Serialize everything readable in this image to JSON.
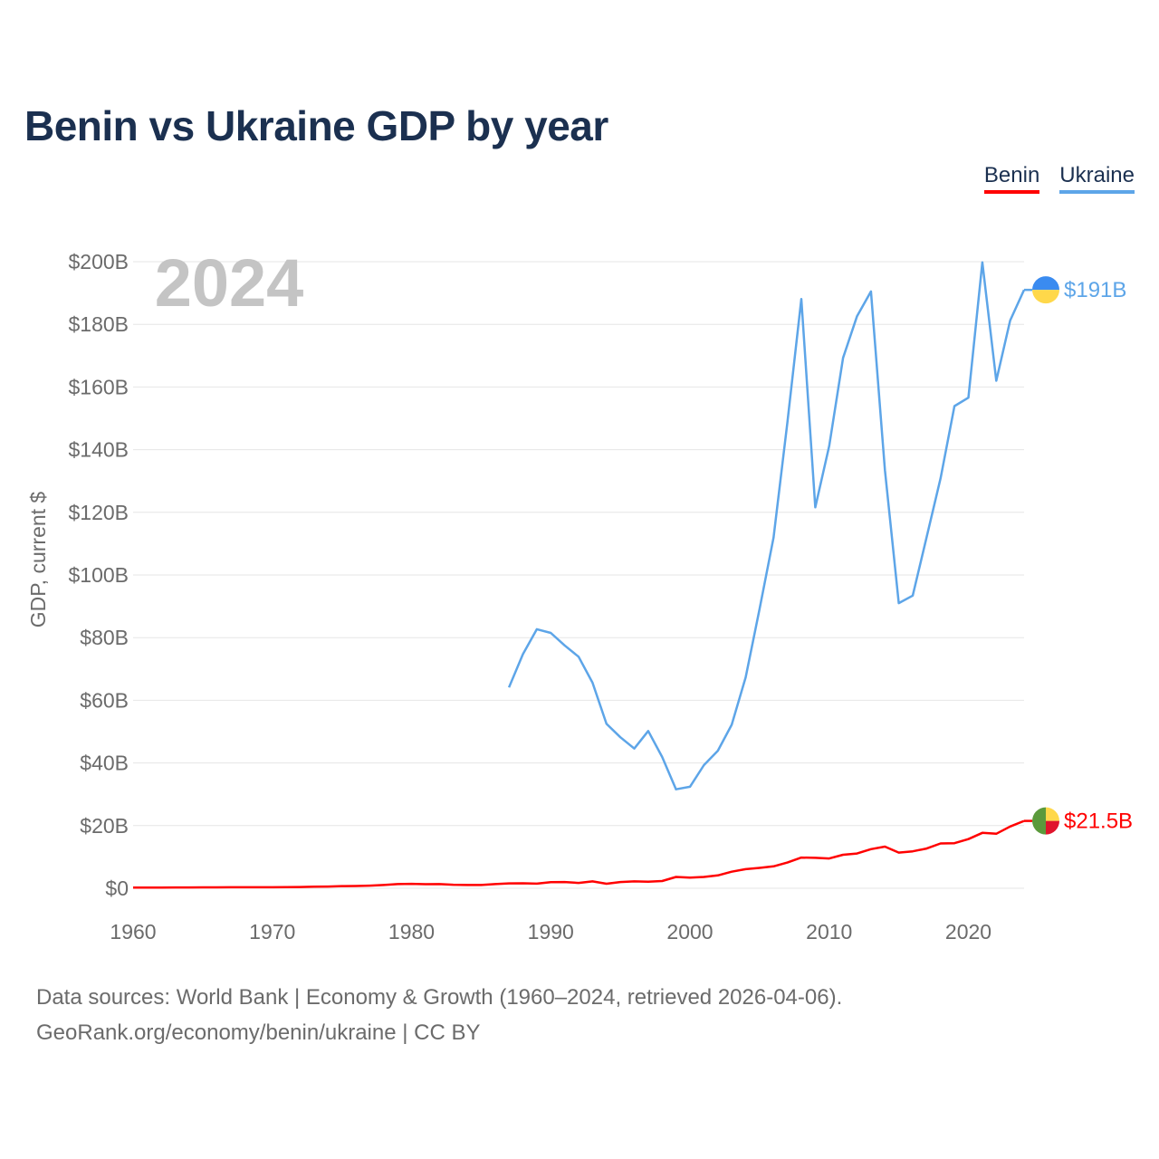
{
  "header": {
    "title": "Benin vs Ukraine GDP by year"
  },
  "legend": {
    "benin": "Benin",
    "ukraine": "Ukraine"
  },
  "footer": {
    "line1": "Data sources: World Bank | Economy & Growth (1960–2024, retrieved 2026-04-06).",
    "line2": "GeoRank.org/economy/benin/ukraine | CC BY"
  },
  "colors": {
    "benin": "#ff0000",
    "ukraine": "#5da5e8",
    "title": "#1b3050",
    "year": "#c4c4c4",
    "grid": "#e6e6e6",
    "tick": "#6b6b6b"
  },
  "chart_data": {
    "type": "line",
    "title": "Benin vs Ukraine GDP by year",
    "year_label": "2024",
    "ylabel": "GDP, current $",
    "xlabel": "",
    "xlim": [
      1960,
      2024
    ],
    "ylim": [
      0,
      200
    ],
    "unit": "billion USD",
    "x_ticks": [
      1960,
      1970,
      1980,
      1990,
      2000,
      2010,
      2020
    ],
    "y_ticks": [
      0,
      20,
      40,
      60,
      80,
      100,
      120,
      140,
      160,
      180,
      200
    ],
    "y_tick_labels": [
      "$0",
      "$20B",
      "$40B",
      "$60B",
      "$80B",
      "$100B",
      "$120B",
      "$140B",
      "$160B",
      "$180B",
      "$200B"
    ],
    "series": [
      {
        "name": "Benin",
        "color": "#ff0000",
        "end_label": "$21.5B",
        "flag": "benin",
        "x": [
          1960,
          1961,
          1962,
          1963,
          1964,
          1965,
          1966,
          1967,
          1968,
          1969,
          1970,
          1971,
          1972,
          1973,
          1974,
          1975,
          1976,
          1977,
          1978,
          1979,
          1980,
          1981,
          1982,
          1983,
          1984,
          1985,
          1986,
          1987,
          1988,
          1989,
          1990,
          1991,
          1992,
          1993,
          1994,
          1995,
          1996,
          1997,
          1998,
          1999,
          2000,
          2001,
          2002,
          2003,
          2004,
          2005,
          2006,
          2007,
          2008,
          2009,
          2010,
          2011,
          2012,
          2013,
          2014,
          2015,
          2016,
          2017,
          2018,
          2019,
          2020,
          2021,
          2022,
          2023,
          2024
        ],
        "values": [
          0.23,
          0.24,
          0.24,
          0.26,
          0.27,
          0.29,
          0.3,
          0.31,
          0.33,
          0.33,
          0.33,
          0.35,
          0.41,
          0.5,
          0.55,
          0.69,
          0.73,
          0.85,
          1.05,
          1.33,
          1.41,
          1.29,
          1.32,
          1.13,
          1.05,
          1.05,
          1.34,
          1.56,
          1.6,
          1.46,
          1.96,
          2.0,
          1.7,
          2.2,
          1.44,
          2.0,
          2.2,
          2.1,
          2.3,
          3.6,
          3.4,
          3.6,
          4.1,
          5.3,
          6.1,
          6.5,
          7.0,
          8.2,
          9.8,
          9.7,
          9.5,
          10.7,
          11.1,
          12.5,
          13.3,
          11.4,
          11.8,
          12.7,
          14.3,
          14.4,
          15.7,
          17.7,
          17.4,
          19.7,
          21.5
        ]
      },
      {
        "name": "Ukraine",
        "color": "#5da5e8",
        "end_label": "$191B",
        "flag": "ukraine",
        "x": [
          1987,
          1988,
          1989,
          1990,
          1991,
          1992,
          1993,
          1994,
          1995,
          1996,
          1997,
          1998,
          1999,
          2000,
          2001,
          2002,
          2003,
          2004,
          2005,
          2006,
          2007,
          2008,
          2009,
          2010,
          2011,
          2012,
          2013,
          2014,
          2015,
          2016,
          2017,
          2018,
          2019,
          2020,
          2021,
          2022,
          2023,
          2024
        ],
        "values": [
          64.1,
          74.7,
          82.7,
          81.5,
          77.5,
          73.9,
          65.6,
          52.5,
          48.2,
          44.6,
          50.2,
          41.9,
          31.6,
          32.4,
          39.3,
          43.9,
          52.2,
          67.3,
          89.2,
          111.9,
          148.7,
          188.1,
          121.6,
          141.2,
          169.3,
          182.6,
          190.5,
          133.5,
          91.0,
          93.4,
          112.1,
          130.9,
          153.9,
          156.6,
          199.8,
          161.99,
          181.2,
          191.0
        ]
      }
    ]
  }
}
